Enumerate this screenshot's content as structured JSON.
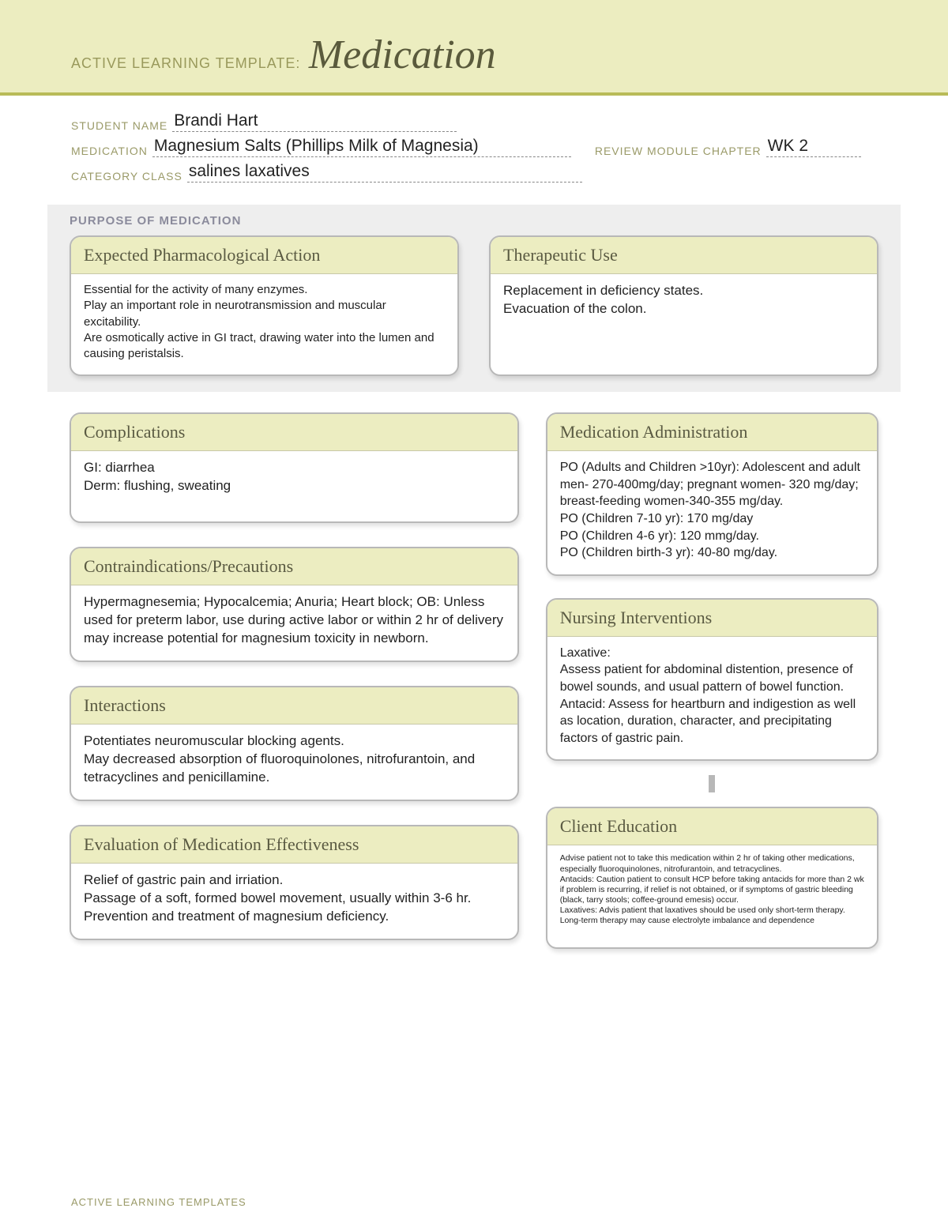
{
  "header": {
    "label": "ACTIVE LEARNING TEMPLATE:",
    "title": "Medication"
  },
  "info": {
    "student_name_label": "STUDENT NAME",
    "student_name": "Brandi Hart",
    "medication_label": "MEDICATION",
    "medication": "Magnesium Salts (Phillips Milk of Magnesia)",
    "chapter_label": "REVIEW MODULE CHAPTER",
    "chapter": "WK 2",
    "category_label": "CATEGORY CLASS",
    "category": "salines laxatives"
  },
  "purpose": {
    "section_label": "PURPOSE OF MEDICATION",
    "pharm_action": {
      "title": "Expected Pharmacological Action",
      "body": "Essential for the activity of many enzymes.\nPlay an important role in neurotransmission and muscular excitability.\nAre osmotically active in GI tract, drawing water into the lumen and causing peristalsis."
    },
    "therapeutic_use": {
      "title": "Therapeutic Use",
      "body": "Replacement in deficiency states.\nEvacuation of the colon."
    }
  },
  "cards": {
    "complications": {
      "title": "Complications",
      "body": "GI: diarrhea\nDerm: flushing, sweating"
    },
    "contraindications": {
      "title": "Contraindications/Precautions",
      "body": "Hypermagnesemia; Hypocalcemia; Anuria; Heart block; OB: Unless used for preterm labor, use during active labor or within 2 hr of delivery may increase potential for magnesium toxicity in newborn."
    },
    "interactions": {
      "title": "Interactions",
      "body": "Potentiates neuromuscular blocking agents.\nMay decreased absorption of fluoroquinolones, nitrofurantoin, and tetracyclines and penicillamine."
    },
    "evaluation": {
      "title": "Evaluation of Medication Effectiveness",
      "body": "Relief of gastric pain and irriation.\nPassage of a soft, formed bowel movement, usually within 3-6 hr.\nPrevention and treatment of magnesium deficiency."
    },
    "administration": {
      "title": "Medication Administration",
      "body": "PO (Adults and Children >10yr): Adolescent and adult men- 270-400mg/day; pregnant women- 320 mg/day; breast-feeding women-340-355 mg/day.\nPO (Children 7-10 yr): 170 mg/day\nPO (Children 4-6 yr): 120 mmg/day.\nPO (Children birth-3 yr): 40-80 mg/day."
    },
    "nursing": {
      "title": "Nursing Interventions",
      "body": "Laxative:\nAssess patient for abdominal distention, presence of bowel sounds, and usual pattern of bowel function.\nAntacid: Assess for heartburn and indigestion as well as location, duration, character, and precipitating factors of gastric pain."
    },
    "education": {
      "title": "Client Education",
      "body": "Advise patient not to take this medication within 2 hr of taking other medications, especially fluoroquinolones, nitrofurantoin, and tetracyclines.\nAntacids: Caution patient to consult HCP before taking antacids for more than 2 wk if problem is recurring, if relief is not obtained, or if symptoms of gastric bleeding (black, tarry stools; coffee-ground emesis) occur.\nLaxatives: Advis patient that laxatives should be used only short-term therapy. Long-term therapy may cause electrolyte imbalance and dependence"
    }
  },
  "footer": "ACTIVE LEARNING TEMPLATES"
}
